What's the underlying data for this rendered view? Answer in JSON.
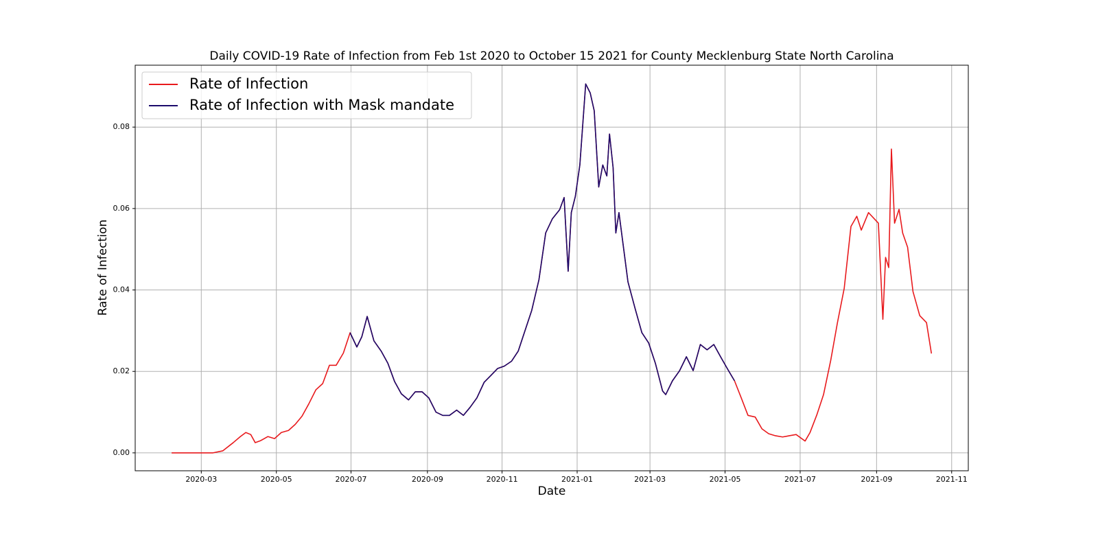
{
  "chart_data": {
    "type": "line",
    "title": "Daily COVID-19 Rate of Infection from Feb 1st 2020 to October 15 2021 for County Mecklenburg State North Carolina",
    "x_label": "Date",
    "y_label": "Rate of Infection",
    "x": [
      2020.098,
      2020.19,
      2020.212,
      2020.235,
      2020.251,
      2020.263,
      2020.274,
      2020.284,
      2020.296,
      2020.312,
      2020.327,
      2020.342,
      2020.358,
      2020.373,
      2020.388,
      2020.403,
      2020.419,
      2020.434,
      2020.449,
      2020.464,
      2020.48,
      2020.495,
      2020.51,
      2020.521,
      2020.533,
      2020.548,
      2020.564,
      2020.579,
      2020.594,
      2020.609,
      2020.625,
      2020.64,
      2020.655,
      2020.67,
      2020.686,
      2020.701,
      2020.716,
      2020.732,
      2020.747,
      2020.762,
      2020.777,
      2020.793,
      2020.808,
      2020.823,
      2020.838,
      2020.854,
      2020.869,
      2020.884,
      2020.899,
      2020.915,
      2020.93,
      2020.945,
      2020.961,
      2020.971,
      2020.98,
      2020.987,
      2020.996,
      2021.006,
      2021.019,
      2021.029,
      2021.038,
      2021.048,
      2021.057,
      2021.066,
      2021.072,
      2021.08,
      2021.086,
      2021.093,
      2021.103,
      2021.113,
      2021.129,
      2021.144,
      2021.159,
      2021.174,
      2021.19,
      2021.197,
      2021.212,
      2021.228,
      2021.243,
      2021.258,
      2021.274,
      2021.289,
      2021.304,
      2021.319,
      2021.335,
      2021.35,
      2021.365,
      2021.38,
      2021.396,
      2021.411,
      2021.426,
      2021.441,
      2021.457,
      2021.472,
      2021.487,
      2021.507,
      2021.518,
      2021.533,
      2021.548,
      2021.564,
      2021.579,
      2021.594,
      2021.609,
      2021.622,
      2021.632,
      2021.648,
      2021.67,
      2021.68,
      2021.686,
      2021.693,
      2021.699,
      2021.706,
      2021.716,
      2021.724,
      2021.735,
      2021.747,
      2021.762,
      2021.777,
      2021.788
    ],
    "series": [
      {
        "name": "Rate of Infection",
        "color": "#e8191c",
        "values": [
          0,
          0,
          0.0005,
          0.0025,
          0.004,
          0.005,
          0.0045,
          0.0025,
          0.003,
          0.004,
          0.0035,
          0.005,
          0.0055,
          0.007,
          0.009,
          0.012,
          0.0155,
          0.017,
          0.0215,
          0.0215,
          0.0245,
          0.0295,
          0.026,
          0.0285,
          0.0335,
          0.0275,
          0.025,
          0.022,
          0.0175,
          0.0145,
          0.013,
          0.015,
          0.015,
          0.0135,
          0.01,
          0.0092,
          0.0092,
          0.0105,
          0.0092,
          0.0112,
          0.0135,
          0.0173,
          0.019,
          0.0207,
          0.0213,
          0.0225,
          0.025,
          0.03,
          0.035,
          0.0425,
          0.054,
          0.0575,
          0.0597,
          0.0627,
          0.0446,
          0.059,
          0.063,
          0.0707,
          0.0906,
          0.0884,
          0.084,
          0.0653,
          0.0707,
          0.068,
          0.0783,
          0.07,
          0.054,
          0.059,
          0.0505,
          0.042,
          0.0354,
          0.0295,
          0.027,
          0.022,
          0.0152,
          0.0143,
          0.0177,
          0.0202,
          0.0236,
          0.0202,
          0.0266,
          0.0253,
          0.0266,
          0.0236,
          0.0205,
          0.0177,
          0.0135,
          0.0092,
          0.0088,
          0.0059,
          0.0047,
          0.0042,
          0.0039,
          0.0042,
          0.0045,
          0.0029,
          0.005,
          0.0093,
          0.0143,
          0.0227,
          0.032,
          0.0404,
          0.0556,
          0.0581,
          0.0547,
          0.059,
          0.0564,
          0.0328,
          0.048,
          0.0455,
          0.0746,
          0.0564,
          0.0598,
          0.054,
          0.0505,
          0.0396,
          0.0337,
          0.032,
          0.0244
        ]
      },
      {
        "name": "Rate of Infection with Mask mandate",
        "color": "#1a0a6b",
        "values": [
          null,
          null,
          null,
          null,
          null,
          null,
          null,
          null,
          null,
          null,
          null,
          null,
          null,
          null,
          null,
          null,
          null,
          null,
          null,
          null,
          null,
          0.0295,
          0.026,
          0.0285,
          0.0335,
          0.0275,
          0.025,
          0.022,
          0.0175,
          0.0145,
          0.013,
          0.015,
          0.015,
          0.0135,
          0.01,
          0.0092,
          0.0092,
          0.0105,
          0.0092,
          0.0112,
          0.0135,
          0.0173,
          0.019,
          0.0207,
          0.0213,
          0.0225,
          0.025,
          0.03,
          0.035,
          0.0425,
          0.054,
          0.0575,
          0.0597,
          0.0627,
          0.0446,
          0.059,
          0.063,
          0.0707,
          0.0906,
          0.0884,
          0.084,
          0.0653,
          0.0707,
          0.068,
          0.0783,
          0.07,
          0.054,
          0.059,
          0.0505,
          0.042,
          0.0354,
          0.0295,
          0.027,
          0.022,
          0.0152,
          0.0143,
          0.0177,
          0.0202,
          0.0236,
          0.0202,
          0.0266,
          0.0253,
          0.0266,
          0.0236,
          0.0205,
          0.0177,
          null,
          null,
          null,
          null,
          null,
          null,
          null,
          null,
          null,
          null,
          null,
          null,
          null,
          null,
          null,
          null,
          null,
          null,
          null,
          null,
          null,
          null,
          null,
          null,
          null,
          null,
          null,
          null,
          null,
          null,
          null,
          null,
          null
        ]
      }
    ],
    "xlim": [
      2020.017,
      2021.87
    ],
    "xticks": [
      {
        "value": 2020.164,
        "label": "2020-03"
      },
      {
        "value": 2020.331,
        "label": "2020-05"
      },
      {
        "value": 2020.497,
        "label": "2020-07"
      },
      {
        "value": 2020.667,
        "label": "2020-09"
      },
      {
        "value": 2020.833,
        "label": "2020-11"
      },
      {
        "value": 2021.0,
        "label": "2021-01"
      },
      {
        "value": 2021.162,
        "label": "2021-03"
      },
      {
        "value": 2021.329,
        "label": "2021-05"
      },
      {
        "value": 2021.496,
        "label": "2021-07"
      },
      {
        "value": 2021.666,
        "label": "2021-09"
      },
      {
        "value": 2021.833,
        "label": "2021-11"
      }
    ],
    "ylim": [
      -0.0044,
      0.0952
    ],
    "yticks": [
      {
        "value": 0,
        "label": "0.00"
      },
      {
        "value": 0.02,
        "label": "0.02"
      },
      {
        "value": 0.04,
        "label": "0.04"
      },
      {
        "value": 0.06,
        "label": "0.06"
      },
      {
        "value": 0.08,
        "label": "0.08"
      }
    ],
    "grid": true,
    "legend": "upper-left"
  }
}
